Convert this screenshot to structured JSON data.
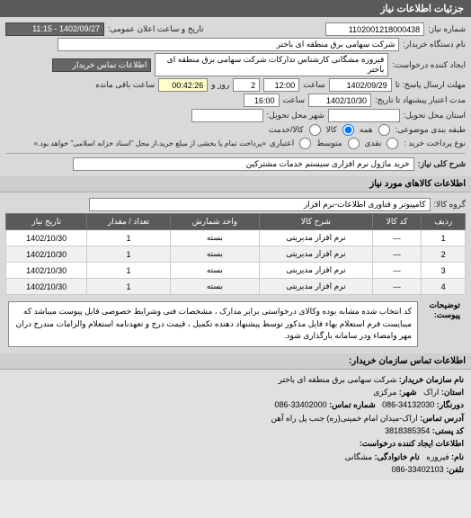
{
  "header": {
    "title": "جزئیات اطلاعات نیاز"
  },
  "form": {
    "number_label": "شماره نیاز:",
    "number_value": "1102001218000438",
    "announce_label": "تاریخ و ساعت اعلان عمومی:",
    "announce_value": "1402/09/27 - 11:15",
    "buyer_label": "نام دستگاه خریدار:",
    "buyer_value": "شرکت سهامی برق منطقه ای باختر",
    "requester_label": "ایجاد کننده درخواست:",
    "requester_value": "فیروزه مشگانی کارشناس تدارکات شرکت سهامی برق منطقه ای باختر",
    "contact_btn": "اطلاعات تماس خریدار",
    "deadline_send_label": "مهلت ارسال پاسخ: تا",
    "deadline_send_date": "1402/09/29",
    "time_label": "ساعت",
    "deadline_send_time": "12:00",
    "remain_days": "2",
    "remain_days_label": "روز و",
    "remain_time": "00:42:26",
    "remain_suffix": "ساعت باقی مانده",
    "validity_label": "مدت اعتبار پیشنهاد تا تاریخ:",
    "validity_date": "1402/10/30",
    "validity_time": "16:00",
    "state_label": "استان محل تحویل:",
    "city_label": "شهر محل تحویل:",
    "category_label": "طبقه بندی موضوعی:",
    "cat_all": "همه",
    "cat_goods": "کالا",
    "cat_service": "کالا/خدمت",
    "payment_label": "نوع پرداخت خرید :",
    "pay_cash": "نقدی",
    "pay_medium": "متوسط",
    "pay_credit": "اعتباری",
    "payment_note": "«پرداخت تمام یا بخشی از مبلغ خرید،از محل \"اسناد خزانه اسلامی\" خواهد بود.»",
    "main_desc_label": "شرح کلی نیاز:",
    "main_desc_value": "خرید ماژول نرم افزاری سیستم خدمات مشترکین"
  },
  "goods": {
    "section_title": "اطلاعات کالاهای مورد نیاز",
    "group_label": "گروه کالا:",
    "group_value": "کامپیوتر و فناوری اطلاعات-نرم افزار",
    "columns": [
      "ردیف",
      "کد کالا",
      "شرح کالا",
      "واحد شمارش",
      "تعداد / مقدار",
      "تاریخ نیاز"
    ],
    "rows": [
      [
        "1",
        "---",
        "نرم افزار مدیریتی",
        "بسته",
        "1",
        "1402/10/30"
      ],
      [
        "2",
        "---",
        "نرم افزار مدیریتی",
        "بسته",
        "1",
        "1402/10/30"
      ],
      [
        "3",
        "---",
        "نرم افزار مدیریتی",
        "بسته",
        "1",
        "1402/10/30"
      ],
      [
        "4",
        "---",
        "نرم افزار مدیریتی",
        "بسته",
        "1",
        "1402/10/30"
      ]
    ],
    "notes_label": "توضیحات پیوست:",
    "notes_text": "کد انتخاب شده مشابه بوده وکالای درخواستی برابر مدارک ، مشخصات فنی وشرایط خصوصی فایل پیوست میباشد که میبایست فرم استعلام بهاء فایل مذکور توسط پیشنهاد دهنده تکمیل ، قیمت درج و تعهدنامه استعلام والزامات مندرج دران مهر وامضاء ودر سامانه بارگذاری شود."
  },
  "contact": {
    "section_title": "اطلاعات تماس سازمان خریدار:",
    "org_label": "نام سازمان خریدار:",
    "org_value": "شرکت سهامی برق منطقه ای باختر",
    "province_label": "استان:",
    "province_value": "اراک",
    "city_label": "شهر:",
    "city_value": "مرکزی",
    "fax_label": "دورنگار:",
    "fax_value": "34132030-086",
    "phone_label": "شماره تماس:",
    "phone_value": "33402000-086",
    "address_label": "آدرس تماس:",
    "address_value": "اراک-میدان امام خمینی(ره) جنب پل راه آهن",
    "postal_label": "کد پستی:",
    "postal_value": "3818385354",
    "creator_section": "اطلاعات ایجاد کننده درخواست:",
    "name_label": "نام:",
    "name_value": "فیروزه",
    "lastname_label": "نام خانوادگی:",
    "lastname_value": "مشگانی",
    "tel_label": "تلفن:",
    "tel_value": "33402103-086"
  },
  "colors": {
    "header_bg": "#5a5a5a",
    "header_fg": "#ffffff",
    "panel_bg": "#d9d9d9",
    "field_bg": "#ffffff",
    "dark_field_bg": "#666666"
  }
}
